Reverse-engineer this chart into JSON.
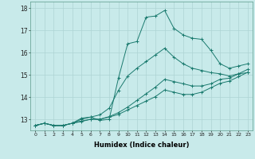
{
  "xlabel": "Humidex (Indice chaleur)",
  "ylabel": "",
  "xlim": [
    -0.5,
    23.5
  ],
  "ylim": [
    12.5,
    18.3
  ],
  "xticks": [
    0,
    1,
    2,
    3,
    4,
    5,
    6,
    7,
    8,
    9,
    10,
    11,
    12,
    13,
    14,
    15,
    16,
    17,
    18,
    19,
    20,
    21,
    22,
    23
  ],
  "yticks": [
    13,
    14,
    15,
    16,
    17,
    18
  ],
  "bg_color": "#c8eaea",
  "grid_color": "#aed4d4",
  "line_color": "#1a7a6e",
  "lines": [
    {
      "x": [
        0,
        1,
        2,
        3,
        4,
        5,
        6,
        7,
        8,
        9,
        10,
        11,
        12,
        13,
        14,
        15,
        16,
        17,
        18,
        19,
        20,
        21,
        22,
        23
      ],
      "y": [
        12.72,
        12.82,
        12.72,
        12.72,
        12.82,
        13.05,
        13.1,
        12.95,
        13.0,
        14.85,
        16.4,
        16.5,
        17.6,
        17.65,
        17.9,
        17.1,
        16.8,
        16.65,
        16.6,
        16.1,
        15.5,
        15.3,
        15.4,
        15.5
      ]
    },
    {
      "x": [
        0,
        1,
        2,
        3,
        4,
        5,
        6,
        7,
        8,
        9,
        10,
        11,
        12,
        13,
        14,
        15,
        16,
        17,
        18,
        19,
        20,
        21,
        22,
        23
      ],
      "y": [
        12.72,
        12.82,
        12.72,
        12.72,
        12.82,
        13.0,
        13.1,
        13.2,
        13.5,
        14.3,
        14.95,
        15.3,
        15.6,
        15.9,
        16.2,
        15.8,
        15.5,
        15.3,
        15.2,
        15.1,
        15.05,
        14.95,
        15.05,
        15.1
      ]
    },
    {
      "x": [
        0,
        1,
        2,
        3,
        4,
        5,
        6,
        7,
        8,
        9,
        10,
        11,
        12,
        13,
        14,
        15,
        16,
        17,
        18,
        19,
        20,
        21,
        22,
        23
      ],
      "y": [
        12.72,
        12.82,
        12.72,
        12.72,
        12.82,
        12.92,
        13.0,
        13.0,
        13.12,
        13.3,
        13.55,
        13.85,
        14.15,
        14.45,
        14.8,
        14.7,
        14.6,
        14.5,
        14.5,
        14.6,
        14.8,
        14.85,
        15.05,
        15.25
      ]
    },
    {
      "x": [
        0,
        1,
        2,
        3,
        4,
        5,
        6,
        7,
        8,
        9,
        10,
        11,
        12,
        13,
        14,
        15,
        16,
        17,
        18,
        19,
        20,
        21,
        22,
        23
      ],
      "y": [
        12.72,
        12.82,
        12.72,
        12.72,
        12.82,
        12.9,
        13.0,
        13.0,
        13.1,
        13.22,
        13.42,
        13.62,
        13.82,
        14.02,
        14.32,
        14.22,
        14.12,
        14.12,
        14.22,
        14.42,
        14.62,
        14.72,
        14.92,
        15.12
      ]
    }
  ]
}
